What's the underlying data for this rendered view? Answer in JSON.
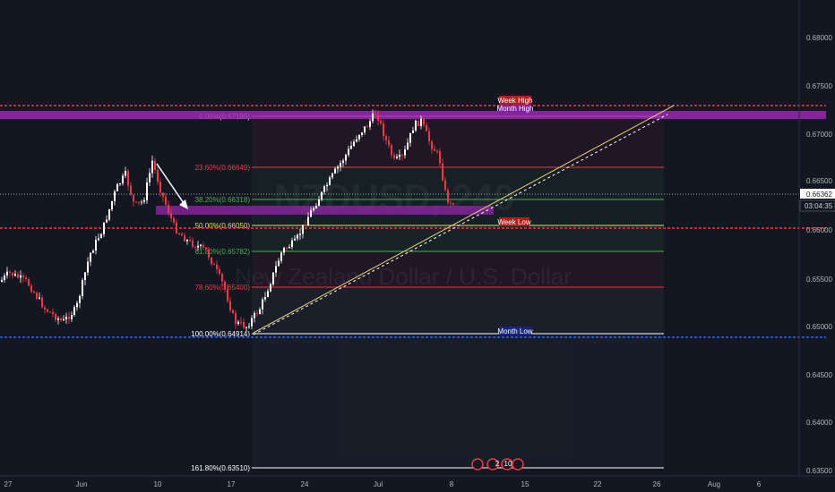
{
  "watermark": {
    "symbol": "NZDUSD, 240",
    "description": "New Zealand Dollar / U.S. Dollar"
  },
  "price_axis": {
    "ticks": [
      "0.68000",
      "0.67500",
      "0.67000",
      "0.66500",
      "0.66000",
      "0.65500",
      "0.65000",
      "0.64500",
      "0.64000",
      "0.63500"
    ],
    "last_price": "0.66362",
    "countdown": "03:04:35"
  },
  "time_axis": {
    "ticks": [
      "27",
      "Jun",
      "10",
      "17",
      "24",
      "Jul",
      "8",
      "15",
      "22",
      "26",
      "Aug",
      "6"
    ]
  },
  "fib": {
    "levels": [
      {
        "label": "0.00%(0.67185)",
        "value": 0.67185,
        "color": "#ffffff"
      },
      {
        "label": "23.60%(0.66649)",
        "value": 0.66649,
        "color": "#f23645"
      },
      {
        "label": "38.20%(0.66318)",
        "value": 0.66318,
        "color": "#4caf50"
      },
      {
        "label": "50.00%(0.66050)",
        "value": 0.6605,
        "color": "#fdd835"
      },
      {
        "label": "61.80%(0.65782)",
        "value": 0.65782,
        "color": "#4caf50"
      },
      {
        "label": "78.60%(0.65400)",
        "value": 0.654,
        "color": "#f23645"
      },
      {
        "label": "100.00%(0.64914)",
        "value": 0.64914,
        "color": "#ffffff"
      },
      {
        "label": "161.80%(0.63510)",
        "value": 0.6351,
        "color": "#ffffff"
      }
    ]
  },
  "horizontal_lines": [
    {
      "label": "Week High",
      "value": 0.6728,
      "color": "#f23645"
    },
    {
      "label": "Month High",
      "value": 0.6722,
      "color": "#9c27b0"
    },
    {
      "label": "Week Low",
      "value": 0.6602,
      "color": "#f23645"
    },
    {
      "label": "Month Low",
      "value": 0.6488,
      "color": "#2962ff"
    }
  ],
  "event_badges": [
    "2",
    "10"
  ],
  "colors": {
    "background": "#131722",
    "up": "#ffffff",
    "down": "#f23645",
    "purple": "#9c27b0",
    "red": "#f23645",
    "blue": "#2962ff",
    "axis_text": "#b2b5be"
  }
}
